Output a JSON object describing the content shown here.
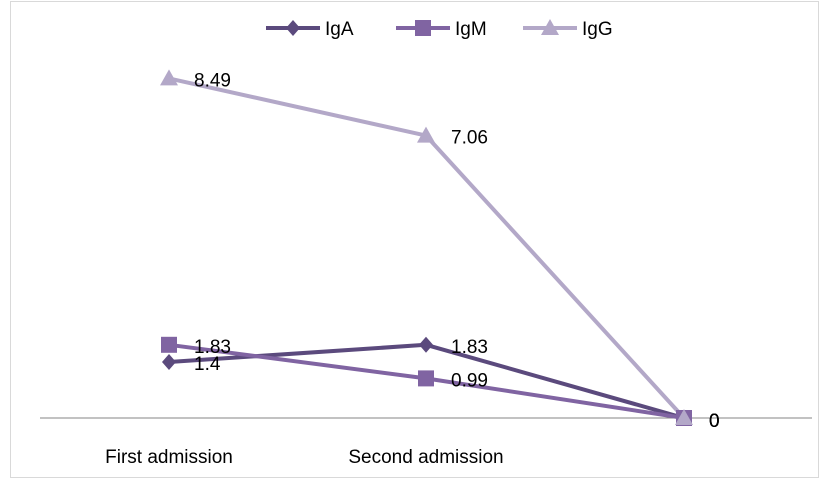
{
  "chart_data": {
    "type": "line",
    "categories": [
      "First admission",
      "Second admission",
      ""
    ],
    "series": [
      {
        "name": "IgA",
        "values": [
          1.4,
          1.83,
          0
        ],
        "labels": [
          "1.4",
          "1.83",
          "0"
        ],
        "color": "#5b4a7d",
        "marker": "diamond"
      },
      {
        "name": "IgM",
        "values": [
          1.83,
          0.99,
          0
        ],
        "labels": [
          "1.83",
          "0.99",
          "0"
        ],
        "color": "#8064a2",
        "marker": "square"
      },
      {
        "name": "IgG",
        "values": [
          8.49,
          7.06,
          0
        ],
        "labels": [
          "8.49",
          "7.06",
          "0"
        ],
        "color": "#b3a8c8",
        "marker": "triangle"
      }
    ],
    "title": "",
    "xlabel": "",
    "ylabel": "",
    "ylim": [
      0,
      10
    ],
    "grid": false,
    "legend_position": "top"
  }
}
